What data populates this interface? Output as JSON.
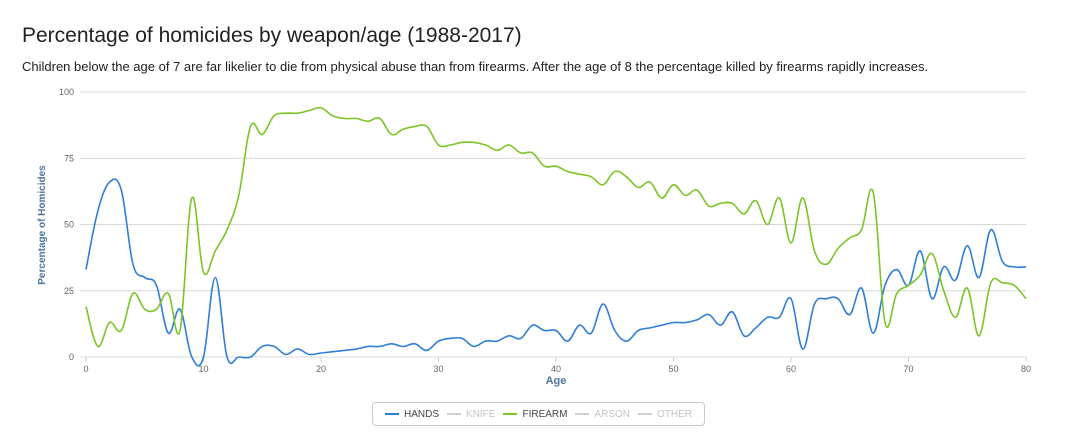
{
  "title": "Percentage of homicides by weapon/age (1988-2017)",
  "subtitle": "Children below the age of 7 are far likelier to die from physical abuse than from firearms. After the age of 8 the percentage killed by firearms rapidly increases.",
  "legend": [
    {
      "label": "HANDS",
      "color": "#2f7ed8",
      "active": true
    },
    {
      "label": "KNIFE",
      "color": "#cfcfcf",
      "active": false
    },
    {
      "label": "FIREARM",
      "color": "#7cc428",
      "active": true
    },
    {
      "label": "ARSON",
      "color": "#cfcfcf",
      "active": false
    },
    {
      "label": "OTHER",
      "color": "#cfcfcf",
      "active": false
    }
  ],
  "chart_data": {
    "type": "line",
    "xlabel": "Age",
    "ylabel": "Percentage of Homicides",
    "xlim": [
      0,
      80
    ],
    "ylim": [
      0,
      100
    ],
    "xticks": [
      0,
      10,
      20,
      30,
      40,
      50,
      60,
      70,
      80
    ],
    "yticks": [
      0,
      25,
      50,
      75,
      100
    ],
    "grid": true,
    "legend_position": "bottom-center",
    "x": [
      0,
      1,
      2,
      3,
      4,
      5,
      6,
      7,
      8,
      9,
      10,
      11,
      12,
      13,
      14,
      15,
      16,
      17,
      18,
      19,
      20,
      21,
      22,
      23,
      24,
      25,
      26,
      27,
      28,
      29,
      30,
      31,
      32,
      33,
      34,
      35,
      36,
      37,
      38,
      39,
      40,
      41,
      42,
      43,
      44,
      45,
      46,
      47,
      48,
      49,
      50,
      51,
      52,
      53,
      54,
      55,
      56,
      57,
      58,
      59,
      60,
      61,
      62,
      63,
      64,
      65,
      66,
      67,
      68,
      69,
      70,
      71,
      72,
      73,
      74,
      75,
      76,
      77,
      78,
      79,
      80
    ],
    "series": [
      {
        "name": "HANDS",
        "color": "#2f7ed8",
        "values": [
          33,
          55,
          66,
          63,
          35,
          30,
          27,
          9,
          18,
          0,
          0,
          30,
          0,
          0,
          0,
          4,
          4,
          1,
          3,
          1,
          1.5,
          2,
          2.5,
          3,
          4,
          4,
          5,
          4,
          5,
          2.5,
          6,
          7,
          7,
          4,
          6,
          6,
          8,
          7,
          12,
          10,
          10,
          6,
          12,
          9,
          20,
          10,
          6,
          10,
          11,
          12,
          13,
          13,
          14,
          16,
          12,
          17,
          8,
          11,
          15,
          15,
          22,
          3,
          20,
          22,
          22,
          16,
          26,
          9,
          27,
          33,
          27,
          40,
          22,
          34,
          29,
          42,
          30,
          48,
          36,
          34,
          34
        ]
      },
      {
        "name": "FIREARM",
        "color": "#7cc428",
        "values": [
          19,
          4,
          13,
          10,
          24,
          18,
          18,
          24,
          10,
          60,
          32,
          40,
          48,
          61,
          87,
          84,
          91,
          92,
          92,
          93,
          94,
          91,
          90,
          90,
          89,
          90,
          84,
          86,
          87,
          87,
          80,
          80,
          81,
          81,
          80,
          78,
          80,
          77,
          77,
          72,
          72,
          70,
          69,
          68,
          65,
          70,
          68,
          64,
          66,
          60,
          65,
          61,
          63,
          57,
          58,
          58,
          54,
          59,
          50,
          60,
          43,
          60,
          40,
          35,
          41,
          45,
          48,
          62,
          13,
          24,
          27,
          31,
          39,
          25,
          15,
          26,
          8,
          28,
          28,
          27,
          22
        ]
      }
    ]
  }
}
